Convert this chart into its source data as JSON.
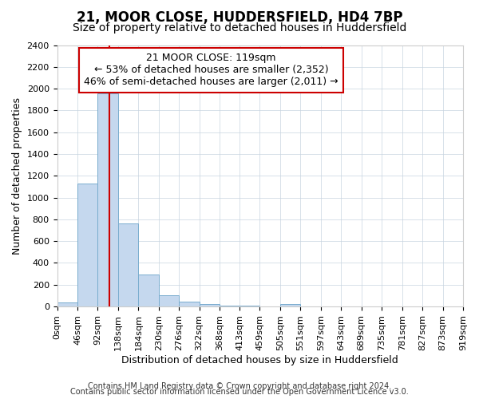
{
  "title1": "21, MOOR CLOSE, HUDDERSFIELD, HD4 7BP",
  "title2": "Size of property relative to detached houses in Huddersfield",
  "xlabel": "Distribution of detached houses by size in Huddersfield",
  "ylabel": "Number of detached properties",
  "property_label": "21 MOOR CLOSE: 119sqm",
  "annotation_line1": "← 53% of detached houses are smaller (2,352)",
  "annotation_line2": "46% of semi-detached houses are larger (2,011) →",
  "bin_edges": [
    0,
    46,
    92,
    138,
    184,
    230,
    276,
    322,
    368,
    413,
    459,
    505,
    551,
    597,
    643,
    689,
    735,
    781,
    827,
    873,
    919
  ],
  "bin_labels": [
    "0sqm",
    "46sqm",
    "92sqm",
    "138sqm",
    "184sqm",
    "230sqm",
    "276sqm",
    "322sqm",
    "368sqm",
    "413sqm",
    "459sqm",
    "505sqm",
    "551sqm",
    "597sqm",
    "643sqm",
    "689sqm",
    "735sqm",
    "781sqm",
    "827sqm",
    "873sqm",
    "919sqm"
  ],
  "counts": [
    40,
    1130,
    1960,
    760,
    295,
    100,
    45,
    20,
    8,
    5,
    3,
    20,
    0,
    0,
    0,
    0,
    0,
    0,
    0,
    0
  ],
  "bar_color": "#c5d8ee",
  "bar_edge_color": "#7aadcf",
  "vline_color": "#cc0000",
  "vline_x": 119,
  "ylim": [
    0,
    2400
  ],
  "xlim": [
    0,
    919
  ],
  "annotation_box_color": "#ffffff",
  "annotation_box_edge": "#cc0000",
  "footer1": "Contains HM Land Registry data © Crown copyright and database right 2024.",
  "footer2": "Contains public sector information licensed under the Open Government Licence v3.0.",
  "bg_color": "#ffffff",
  "grid_color": "#c8d4e0",
  "title1_fontsize": 12,
  "title2_fontsize": 10,
  "xlabel_fontsize": 9,
  "ylabel_fontsize": 9,
  "tick_fontsize": 8,
  "annotation_fontsize": 9,
  "footer_fontsize": 7
}
